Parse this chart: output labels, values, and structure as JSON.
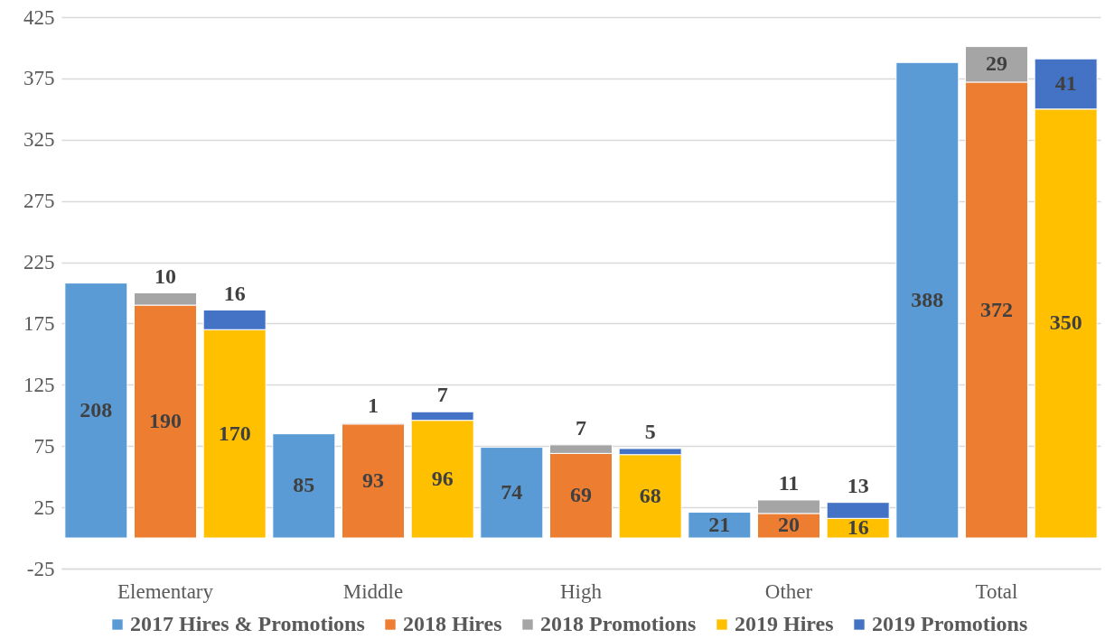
{
  "chart_data": {
    "type": "bar",
    "categories": [
      null,
      "Elementary",
      null,
      null,
      "Middle",
      null,
      null,
      "High",
      null,
      null,
      "Other",
      null,
      null,
      "Total",
      null
    ],
    "series": [
      {
        "name": "2017 Hires & Promotions",
        "color": "#5b9bd5",
        "values": [
          208,
          null,
          null,
          85,
          null,
          null,
          74,
          null,
          null,
          21,
          null,
          null,
          388,
          null,
          null
        ]
      },
      {
        "name": "2018 Hires",
        "color": "#ed7d31",
        "values": [
          null,
          190,
          null,
          null,
          93,
          null,
          null,
          69,
          null,
          null,
          20,
          null,
          null,
          372,
          null
        ]
      },
      {
        "name": "2018 Promotions",
        "color": "#a5a5a5",
        "values": [
          null,
          10,
          null,
          null,
          1,
          null,
          null,
          7,
          null,
          null,
          11,
          null,
          null,
          29,
          null
        ]
      },
      {
        "name": "2019 Hires",
        "color": "#ffc000",
        "values": [
          null,
          null,
          170,
          null,
          null,
          96,
          null,
          null,
          68,
          null,
          null,
          16,
          null,
          null,
          350
        ]
      },
      {
        "name": "2019 Promotions",
        "color": "#4472c4",
        "values": [
          null,
          null,
          16,
          null,
          null,
          7,
          null,
          null,
          5,
          null,
          null,
          13,
          null,
          null,
          41
        ]
      }
    ],
    "stacked": true,
    "ylim": [
      -25,
      425
    ],
    "yticks": [
      -25,
      25,
      75,
      125,
      175,
      225,
      275,
      325,
      375,
      425
    ],
    "grid": "y",
    "legend": "bottom",
    "data_labels": true
  }
}
